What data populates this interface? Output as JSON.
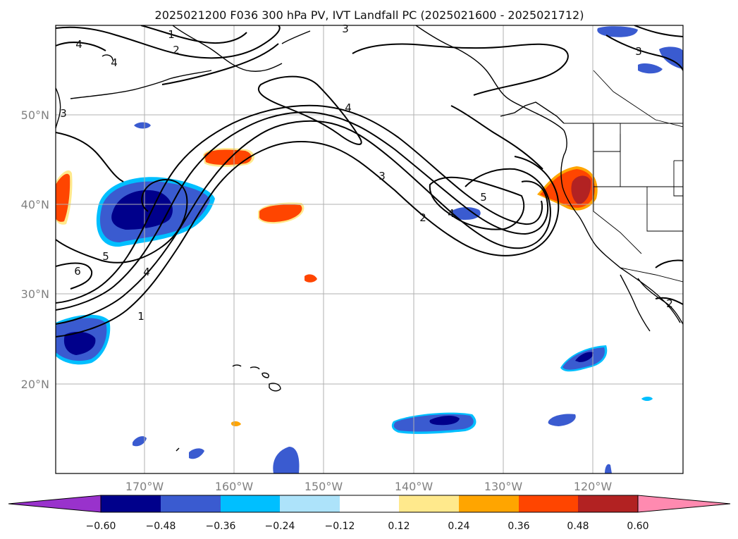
{
  "title": "2025021200 F036 300 hPa PV, IVT Landfall PC (2025021600 - 2025021712)",
  "lat_labels": [
    "50°N",
    "40°N",
    "30°N",
    "20°N"
  ],
  "lon_labels": [
    "170°W",
    "160°W",
    "150°W",
    "140°W",
    "130°W",
    "120°W"
  ],
  "colorbar": {
    "ticks": [
      "−0.60",
      "−0.48",
      "−0.36",
      "−0.24",
      "−0.12",
      "0.12",
      "0.24",
      "0.36",
      "0.48",
      "0.60"
    ],
    "colors": [
      "#9932CC",
      "#00008B",
      "#3A5BD0",
      "#00BFFF",
      "#ADE3FA",
      "#FFFFFF",
      "#FFE98C",
      "#FFA500",
      "#FF4500",
      "#B22222",
      "#FF8AB0"
    ]
  },
  "contour_labels": [
    "1",
    "2",
    "3",
    "4",
    "5",
    "6",
    "4",
    "5",
    "4",
    "3",
    "2",
    "1",
    "2",
    "3",
    "4",
    "3",
    "4"
  ]
}
